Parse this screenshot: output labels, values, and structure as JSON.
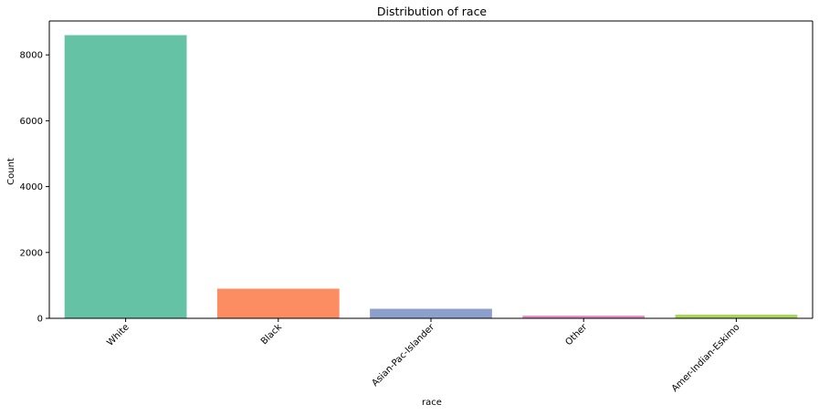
{
  "chart_data": {
    "type": "bar",
    "title": "Distribution of race",
    "xlabel": "race",
    "ylabel": "Count",
    "categories": [
      "White",
      "Black",
      "Asian-Pac-Islander",
      "Other",
      "Amer-Indian-Eskimo"
    ],
    "values": [
      8600,
      900,
      290,
      80,
      110
    ],
    "colors": [
      "#66c2a5",
      "#fc8d62",
      "#8da0cb",
      "#e78ac3",
      "#a6d854"
    ],
    "ylim": [
      0,
      9030
    ],
    "yticks": [
      0,
      2000,
      4000,
      6000,
      8000
    ],
    "x_tick_rotation": 45,
    "grid": false,
    "legend": "none"
  }
}
